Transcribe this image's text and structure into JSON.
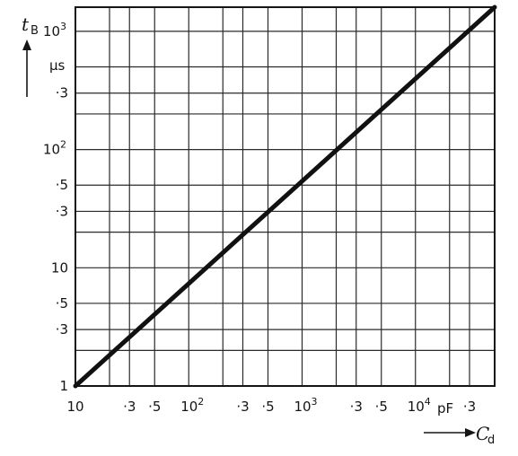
{
  "chart_data": {
    "type": "line",
    "x_scale": "log",
    "y_scale": "log",
    "xlim": [
      10,
      50000
    ],
    "ylim": [
      1,
      1600
    ],
    "grid": true,
    "series": [
      {
        "x": [
          10,
          50000
        ],
        "y": [
          1,
          1600
        ]
      }
    ],
    "x_tick_labels": [
      {
        "value": 10,
        "base": "10",
        "exp": ""
      },
      {
        "value": 30,
        "base": "·3",
        "exp": ""
      },
      {
        "value": 50,
        "base": "·5",
        "exp": ""
      },
      {
        "value": 100,
        "base": "10",
        "exp": "2"
      },
      {
        "value": 300,
        "base": "·3",
        "exp": ""
      },
      {
        "value": 500,
        "base": "·5",
        "exp": ""
      },
      {
        "value": 1000,
        "base": "10",
        "exp": "3"
      },
      {
        "value": 3000,
        "base": "·3",
        "exp": ""
      },
      {
        "value": 5000,
        "base": "·5",
        "exp": ""
      },
      {
        "value": 10000,
        "base": "10",
        "exp": "4"
      },
      {
        "value": 30000,
        "base": "·3",
        "exp": ""
      }
    ],
    "y_tick_labels": [
      {
        "value": 1,
        "base": "1",
        "exp": ""
      },
      {
        "value": 3,
        "base": "·3",
        "exp": ""
      },
      {
        "value": 5,
        "base": "·5",
        "exp": ""
      },
      {
        "value": 10,
        "base": "10",
        "exp": ""
      },
      {
        "value": 30,
        "base": "·3",
        "exp": ""
      },
      {
        "value": 50,
        "base": "·5",
        "exp": ""
      },
      {
        "value": 100,
        "base": "10",
        "exp": "2"
      },
      {
        "value": 300,
        "base": "·3",
        "exp": ""
      },
      {
        "value": 1000,
        "base": "10",
        "exp": "3"
      }
    ],
    "x_grid_values": [
      10,
      20,
      30,
      50,
      100,
      200,
      300,
      500,
      1000,
      2000,
      3000,
      5000,
      10000,
      20000,
      30000
    ],
    "y_grid_values": [
      1,
      2,
      3,
      5,
      10,
      20,
      30,
      50,
      100,
      200,
      300,
      500,
      1000
    ],
    "xlabel": {
      "main": "C",
      "sub": "d",
      "unit": "pF"
    },
    "ylabel": {
      "main": "t",
      "sub": "B",
      "unit": "µs"
    }
  }
}
